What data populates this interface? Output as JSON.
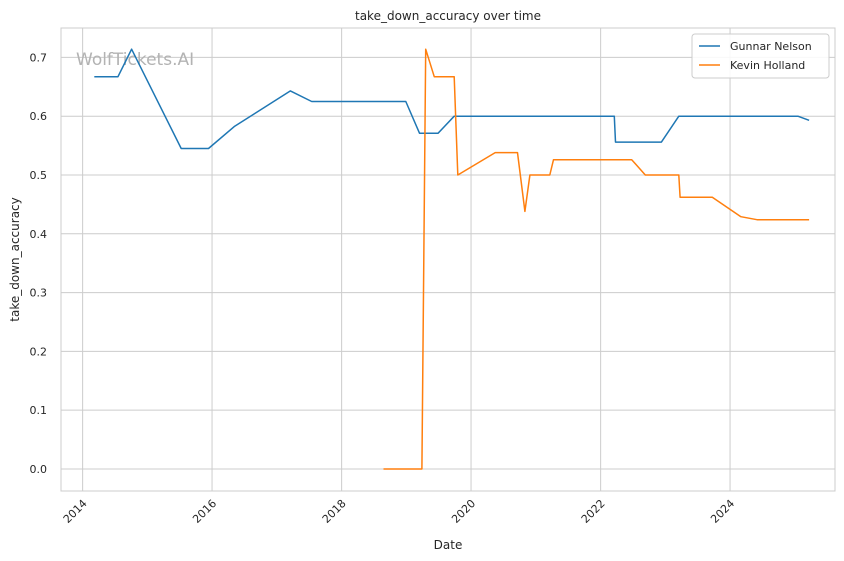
{
  "chart_data": {
    "type": "line",
    "title": "take_down_accuracy over time",
    "xlabel": "Date",
    "ylabel": "take_down_accuracy",
    "watermark": "WolfTickets.AI",
    "x_axis": {
      "type": "date",
      "range": [
        "2013-09-01",
        "2025-08-15"
      ],
      "ticks": [
        "2014",
        "2016",
        "2018",
        "2020",
        "2022",
        "2024"
      ]
    },
    "y_axis": {
      "range": [
        -0.0375,
        0.75
      ],
      "ticks": [
        0.0,
        0.1,
        0.2,
        0.3,
        0.4,
        0.5,
        0.6,
        0.7
      ],
      "tick_labels": [
        "0.0",
        "0.1",
        "0.2",
        "0.3",
        "0.4",
        "0.5",
        "0.6",
        "0.7"
      ]
    },
    "grid": true,
    "legend": "top-right",
    "series": [
      {
        "name": "Gunnar Nelson",
        "color": "#1f77b4",
        "points": [
          [
            "2014-03-08",
            0.667
          ],
          [
            "2014-07-19",
            0.667
          ],
          [
            "2014-10-04",
            0.714
          ],
          [
            "2015-07-11",
            0.545
          ],
          [
            "2015-12-12",
            0.545
          ],
          [
            "2016-05-08",
            0.583
          ],
          [
            "2017-03-18",
            0.643
          ],
          [
            "2017-07-16",
            0.625
          ],
          [
            "2018-12-29",
            0.625
          ],
          [
            "2019-03-16",
            0.571
          ],
          [
            "2019-06-29",
            0.571
          ],
          [
            "2019-09-28",
            0.6
          ],
          [
            "2022-03-19",
            0.6
          ],
          [
            "2022-03-26",
            0.556
          ],
          [
            "2022-12-10",
            0.556
          ],
          [
            "2023-03-18",
            0.6
          ],
          [
            "2025-01-18",
            0.6
          ],
          [
            "2025-03-22",
            0.593
          ]
        ]
      },
      {
        "name": "Kevin Holland",
        "color": "#ff7f0e",
        "points": [
          [
            "2018-08-25",
            0.0
          ],
          [
            "2019-03-30",
            0.0
          ],
          [
            "2019-04-20",
            0.714
          ],
          [
            "2019-06-08",
            0.667
          ],
          [
            "2019-09-28",
            0.667
          ],
          [
            "2019-10-18",
            0.5
          ],
          [
            "2020-05-16",
            0.538
          ],
          [
            "2020-09-19",
            0.538
          ],
          [
            "2020-10-31",
            0.438
          ],
          [
            "2020-11-28",
            0.5
          ],
          [
            "2021-03-20",
            0.5
          ],
          [
            "2021-04-10",
            0.526
          ],
          [
            "2022-06-25",
            0.526
          ],
          [
            "2022-09-10",
            0.5
          ],
          [
            "2023-03-18",
            0.5
          ],
          [
            "2023-03-25",
            0.462
          ],
          [
            "2023-09-23",
            0.462
          ],
          [
            "2024-03-02",
            0.429
          ],
          [
            "2024-06-01",
            0.424
          ],
          [
            "2025-03-22",
            0.424
          ]
        ]
      }
    ]
  }
}
